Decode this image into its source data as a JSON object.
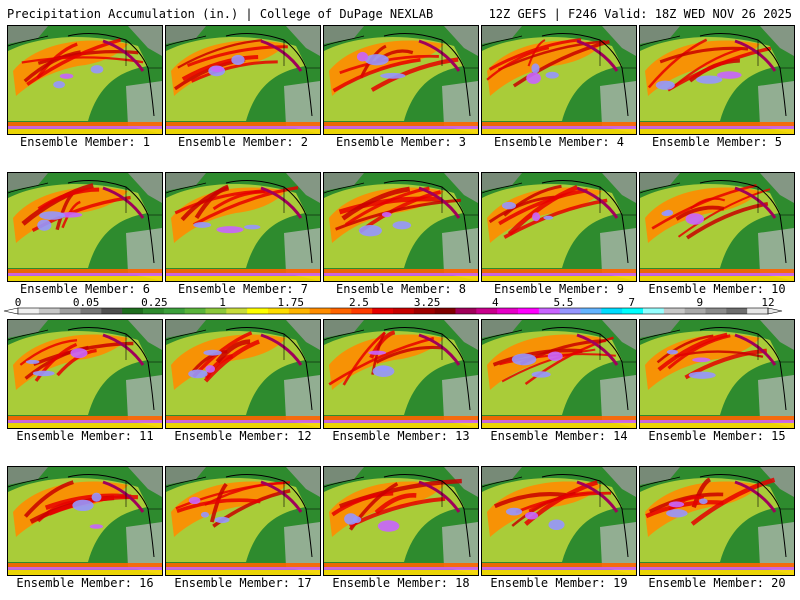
{
  "header": {
    "left": "Precipitation Accumulation (in.) | College of DuPage NEXLAB",
    "right": "12Z GEFS | F246 Valid: 18Z WED NOV 26 2025"
  },
  "caption_prefix": "Ensemble Member: ",
  "members": [
    "1",
    "2",
    "3",
    "4",
    "5",
    "6",
    "7",
    "8",
    "9",
    "10",
    "11",
    "12",
    "13",
    "14",
    "15",
    "16",
    "17",
    "18",
    "19",
    "20"
  ],
  "colorbar": {
    "tick_labels": [
      "0",
      "0.05",
      "0.25",
      "1",
      "1.75",
      "2.5",
      "3.25",
      "4",
      "5.5",
      "7",
      "9",
      "12"
    ],
    "colors": [
      "#f0f0f0",
      "#c8c8c8",
      "#a0a0a0",
      "#787878",
      "#505050",
      "#1e6e1e",
      "#2e8b2e",
      "#3ca03c",
      "#5ab43c",
      "#8cc83c",
      "#c8dc3c",
      "#ffff00",
      "#ffdc00",
      "#ffb400",
      "#ff8c00",
      "#ff6400",
      "#ff3c00",
      "#e60000",
      "#c80000",
      "#a00000",
      "#800000",
      "#a0005a",
      "#c8008c",
      "#e600c8",
      "#ff00ff",
      "#c864ff",
      "#9696ff",
      "#64b4ff",
      "#00dcff",
      "#00ffff",
      "#96ffff",
      "#c8c8c8",
      "#aaaaaa",
      "#8c8c8c",
      "#6e6e6e",
      "#e6e6e6"
    ]
  }
}
